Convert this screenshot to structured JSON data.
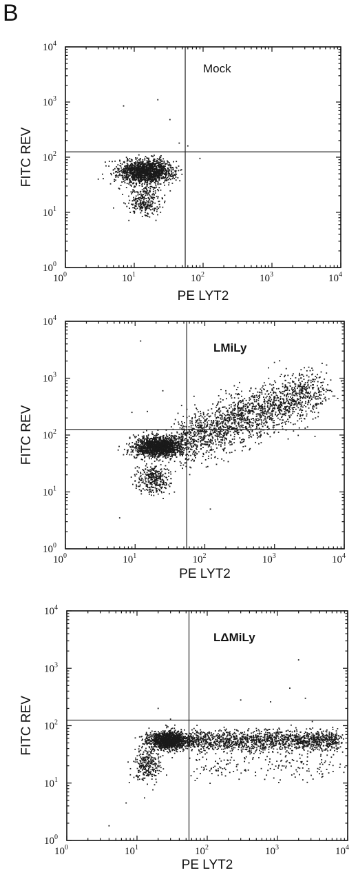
{
  "figure": {
    "panel_label": "B"
  },
  "chart_data": [
    {
      "type": "scatter",
      "title": "Mock",
      "xlabel": "PE LYT2",
      "ylabel": "FITC REV",
      "xscale": "log",
      "yscale": "log",
      "xlim": [
        1,
        10000
      ],
      "ylim": [
        1,
        10000
      ],
      "ticks": [
        "10^0",
        "10^1",
        "10^2",
        "10^3",
        "10^4"
      ],
      "quadrant_gate": {
        "x": 55,
        "y": 125
      },
      "populations": [
        {
          "name": "main",
          "center": [
            15,
            55
          ],
          "spread": [
            0.2,
            0.11
          ],
          "count": 1500
        },
        {
          "name": "low",
          "center": [
            14,
            16
          ],
          "spread": [
            0.12,
            0.13
          ],
          "count": 280
        }
      ],
      "outliers": [
        [
          7,
          850
        ],
        [
          22,
          1100
        ],
        [
          33,
          480
        ],
        [
          90,
          95
        ],
        [
          5,
          12
        ],
        [
          3,
          40
        ],
        [
          60,
          160
        ],
        [
          45,
          180
        ],
        [
          8,
          90
        ]
      ]
    },
    {
      "type": "scatter",
      "title": "LMiLy",
      "xlabel": "PE LYT2",
      "ylabel": "FITC REV",
      "xscale": "log",
      "yscale": "log",
      "xlim": [
        1,
        10000
      ],
      "ylim": [
        1,
        10000
      ],
      "ticks": [
        "10^0",
        "10^1",
        "10^2",
        "10^3",
        "10^4"
      ],
      "quadrant_gate": {
        "x": 55,
        "y": 125
      },
      "populations": [
        {
          "name": "main",
          "center": [
            22,
            62
          ],
          "spread": [
            0.17,
            0.09
          ],
          "count": 1500
        },
        {
          "name": "low",
          "center": [
            18,
            17
          ],
          "spread": [
            0.12,
            0.12
          ],
          "count": 320
        },
        {
          "name": "diagonal",
          "from": [
            40,
            70
          ],
          "to": [
            4000,
            600
          ],
          "spread": 0.22,
          "count": 1900
        }
      ],
      "outliers": [
        [
          12,
          4500
        ],
        [
          6,
          3.5
        ],
        [
          120,
          5
        ],
        [
          9,
          250
        ],
        [
          15,
          260
        ],
        [
          25,
          600
        ],
        [
          70,
          480
        ],
        [
          200,
          600
        ]
      ]
    },
    {
      "type": "scatter",
      "title": "LΔMiLy",
      "xlabel": "PE LYT2",
      "ylabel": "FITC REV",
      "xscale": "log",
      "yscale": "log",
      "xlim": [
        1,
        10000
      ],
      "ylim": [
        1,
        10000
      ],
      "ticks": [
        "10^0",
        "10^1",
        "10^2",
        "10^3",
        "10^4"
      ],
      "quadrant_gate": {
        "x": 55,
        "y": 125
      },
      "populations": [
        {
          "name": "main",
          "center": [
            28,
            55
          ],
          "spread": [
            0.14,
            0.08
          ],
          "count": 1300
        },
        {
          "name": "low",
          "center": [
            14,
            20
          ],
          "spread": [
            0.1,
            0.15
          ],
          "count": 260
        },
        {
          "name": "horizontal",
          "from": [
            50,
            55
          ],
          "to": [
            8000,
            55
          ],
          "spread": 0.09,
          "count": 1500
        },
        {
          "name": "sparse",
          "from": [
            60,
            20
          ],
          "to": [
            8000,
            20
          ],
          "spread": 0.12,
          "count": 180
        }
      ],
      "outliers": [
        [
          2000,
          1400
        ],
        [
          1500,
          450
        ],
        [
          2500,
          300
        ],
        [
          4,
          1.8
        ],
        [
          7,
          4.5
        ],
        [
          30,
          130
        ],
        [
          20,
          200
        ],
        [
          300,
          280
        ],
        [
          800,
          260
        ]
      ]
    }
  ]
}
